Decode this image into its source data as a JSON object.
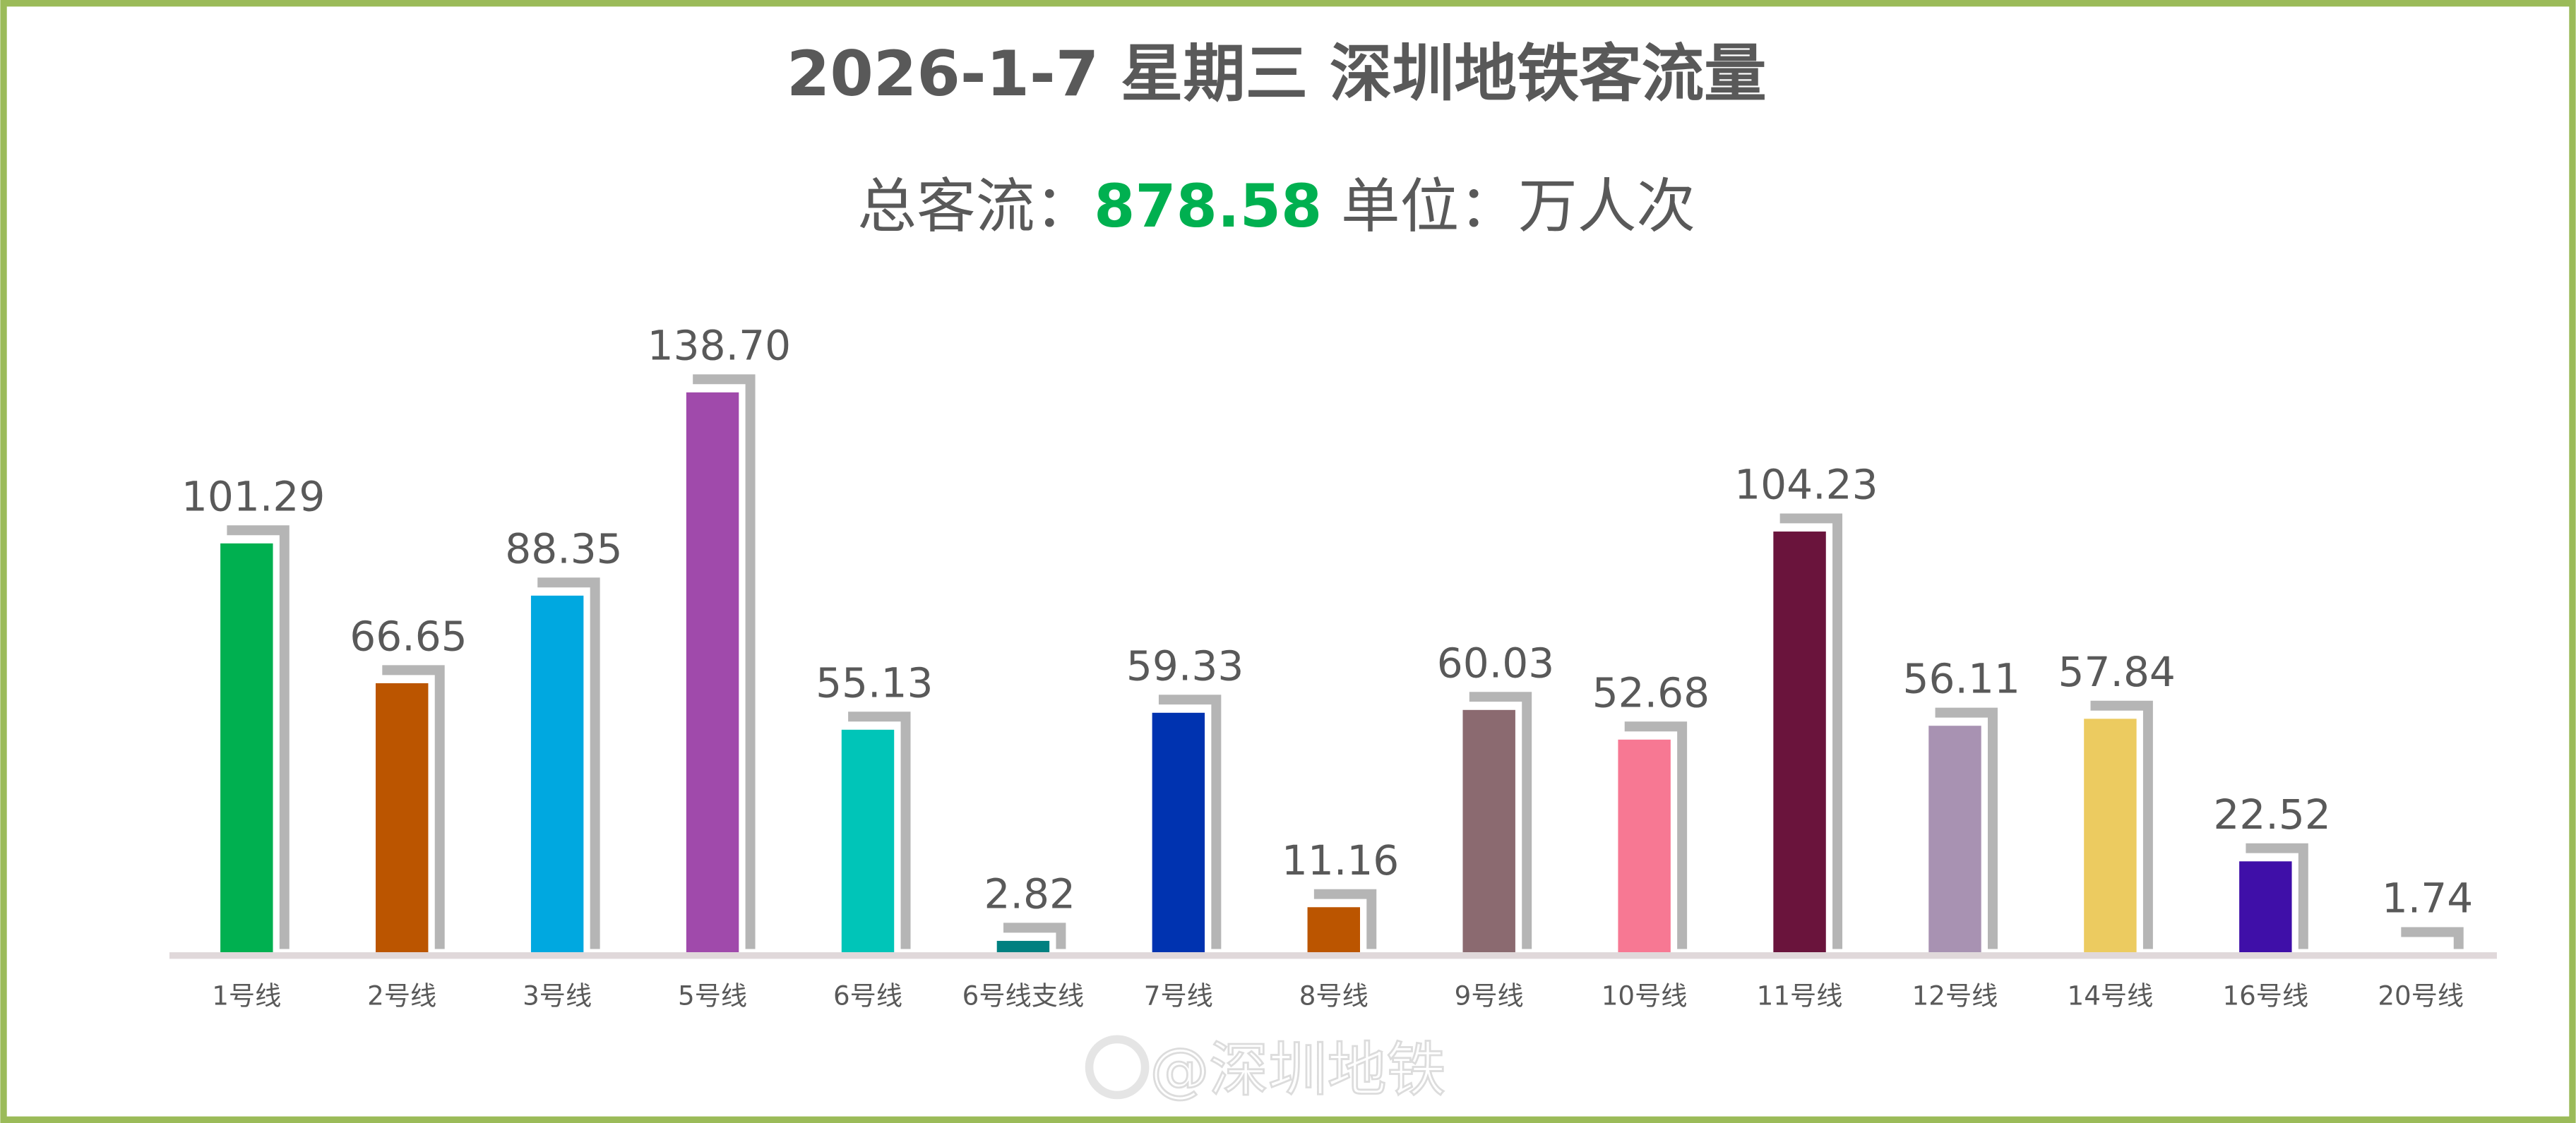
{
  "chart_data": {
    "type": "bar",
    "title": "2026-1-7 星期三 深圳地铁客流量",
    "subtitle": {
      "prefix": "总客流：",
      "total": "878.58",
      "suffix": " 单位：万人次"
    },
    "categories": [
      "1号线",
      "2号线",
      "3号线",
      "5号线",
      "6号线",
      "6号线支线",
      "7号线",
      "8号线",
      "9号线",
      "10号线",
      "11号线",
      "12号线",
      "14号线",
      "16号线",
      "20号线"
    ],
    "values": [
      101.29,
      66.65,
      88.35,
      138.7,
      55.13,
      2.82,
      59.33,
      11.16,
      60.03,
      52.68,
      104.23,
      56.11,
      57.84,
      22.52,
      1.74
    ],
    "value_labels": [
      "101.29",
      "66.65",
      "88.35",
      "138.70",
      "55.13",
      "2.82",
      "59.33",
      "11.16",
      "60.03",
      "52.68",
      "104.23",
      "56.11",
      "57.84",
      "22.52",
      "1.74"
    ],
    "colors": [
      "#00b050",
      "#bb5500",
      "#00a8e0",
      "#a04aab",
      "#00c5b8",
      "#008080",
      "#0033b0",
      "#bb5500",
      "#8b6a70",
      "#f77893",
      "#6a143c",
      "#a892b2",
      "#eccb60",
      "#3f0fa8",
      "#b5b5b5"
    ],
    "ylim": [
      0,
      140
    ],
    "grid": false,
    "legend": "none",
    "shadow_color": "#b5b5b5",
    "total_color": "#00b050",
    "border_color": "#9bbb59",
    "text_color": "#595959"
  },
  "watermark": "@深圳地铁"
}
